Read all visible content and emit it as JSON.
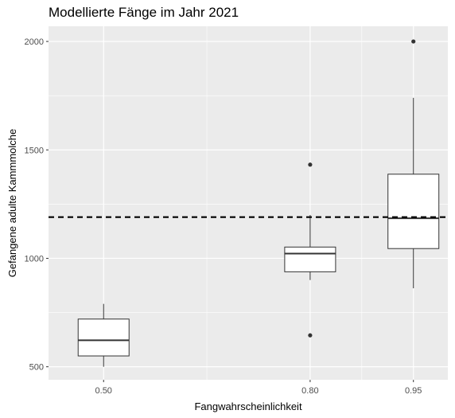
{
  "chart_data": {
    "type": "boxplot",
    "title": "Modellierte Fänge im Jahr 2021",
    "xlabel": "Fangwahrscheinlichkeit",
    "ylabel": "Gefangene adulte Kammmolche",
    "x_tick_labels": [
      "0.50",
      "0.80",
      "0.95"
    ],
    "y_ticks": [
      500,
      1000,
      1500,
      2000
    ],
    "y_tick_labels": [
      "500",
      "1000",
      "1500",
      "2000"
    ],
    "xlim": [
      0.42,
      1.0
    ],
    "ylim": [
      440,
      2070
    ],
    "grid": true,
    "boxes": [
      {
        "x": 0.5,
        "min": 500,
        "q1": 550,
        "median": 622,
        "q3": 720,
        "max": 790,
        "outliers": []
      },
      {
        "x": 0.8,
        "min": 900,
        "q1": 938,
        "median": 1022,
        "q3": 1052,
        "max": 1200,
        "outliers": [
          1432,
          645
        ]
      },
      {
        "x": 0.95,
        "min": 862,
        "q1": 1045,
        "median": 1185,
        "q3": 1388,
        "max": 1740,
        "outliers": [
          2000
        ]
      }
    ],
    "reference_line": {
      "y": 1190,
      "style": "dashed"
    },
    "colors": {
      "panel": "#ebebeb",
      "grid": "#ffffff",
      "box_fill": "#ffffff",
      "box_stroke": "#333333",
      "text": "#4d4d4d"
    }
  }
}
